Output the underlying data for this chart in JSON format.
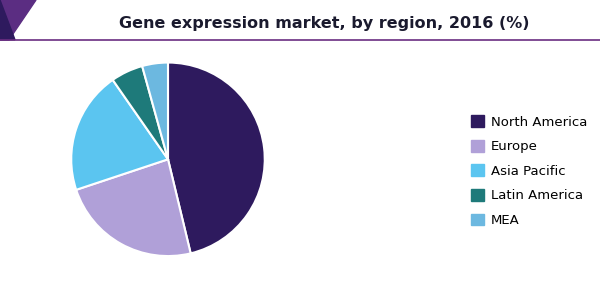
{
  "title": "Gene expression market, by region, 2016 (%)",
  "labels": [
    "North America",
    "Europe",
    "Asia Pacific",
    "Latin America",
    "MEA"
  ],
  "values": [
    43,
    22,
    19,
    5,
    4
  ],
  "colors": [
    "#2e1a5e",
    "#b0a0d8",
    "#5bc5f0",
    "#1e7a7a",
    "#6cb8e0"
  ],
  "startangle": 90,
  "bg_color": "#ffffff",
  "title_fontsize": 11.5,
  "legend_fontsize": 9.5,
  "title_color": "#1a1a2e",
  "header_line_color": "#6b2d82"
}
